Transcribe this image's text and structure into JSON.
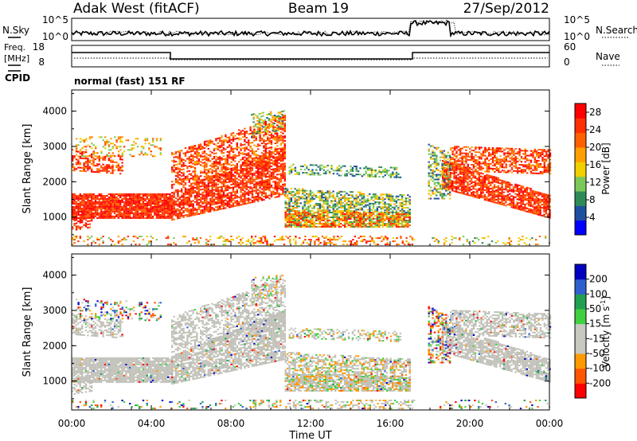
{
  "header": {
    "station": "Adak West (fitACF)",
    "beam": "Beam 19",
    "date": "27/Sep/2012"
  },
  "noise_panel": {
    "left_label": "N.Sky",
    "right_label": "N.Search",
    "left_ticks": [
      "10^5",
      "10^0"
    ],
    "right_ticks": [
      "10^5",
      "10^0"
    ]
  },
  "freq_panel": {
    "left_label": "Freq.",
    "left_unit": "[MHz]",
    "left_ticks": [
      "18",
      "8"
    ],
    "right_label": "Nave",
    "right_ticks": [
      "60",
      "0"
    ],
    "cpid_label": "CPID",
    "cpid_text": "normal (fast) 151 RF"
  },
  "colors": {
    "power_scale": [
      "#0000ff",
      "#1f4fa0",
      "#2e8b57",
      "#7cc85a",
      "#f0d000",
      "#ffa000",
      "#ff6000",
      "#ff3000",
      "#ff0000"
    ],
    "velocity_scale": [
      "#ff0000",
      "#ff5500",
      "#ff9900",
      "#c8c8c0",
      "#c8c8c0",
      "#40d040",
      "#20a050",
      "#3060d0",
      "#0000c0"
    ],
    "ground_scatter": "#c0c0b8"
  },
  "chart_data": [
    {
      "type": "heatmap",
      "title": "Power",
      "ylabel": "Slant Range [km]",
      "xlabel": "Time UT",
      "ylim": [
        180,
        4600
      ],
      "yticks": [
        "1000",
        "2000",
        "3000",
        "4000"
      ],
      "xticks": [
        "00:00",
        "04:00",
        "08:00",
        "12:00",
        "16:00",
        "20:00",
        "00:00"
      ],
      "colorbar": {
        "label": "Power [dB]",
        "ticks": [
          "4",
          "8",
          "12",
          "16",
          "20",
          "24",
          "28"
        ],
        "range": [
          0,
          30
        ]
      }
    },
    {
      "type": "heatmap",
      "title": "Velocity",
      "ylabel": "Slant Range [km]",
      "xlabel": "Time UT",
      "ylim": [
        180,
        4600
      ],
      "yticks": [
        "1000",
        "2000",
        "3000",
        "4000"
      ],
      "xticks": [
        "00:00",
        "04:00",
        "08:00",
        "12:00",
        "16:00",
        "20:00",
        "00:00"
      ],
      "colorbar": {
        "label": "Velocity [m s",
        "label_sup": "-1",
        "label_end": "]",
        "ticks": [
          "200",
          "100",
          "50",
          "15",
          "-15",
          "-50",
          "-100",
          "-200"
        ],
        "range": [
          -250,
          250
        ]
      }
    }
  ],
  "xaxis": {
    "label": "Time UT",
    "ticks": [
      "00:00",
      "04:00",
      "08:00",
      "12:00",
      "16:00",
      "20:00",
      "00:00"
    ]
  }
}
